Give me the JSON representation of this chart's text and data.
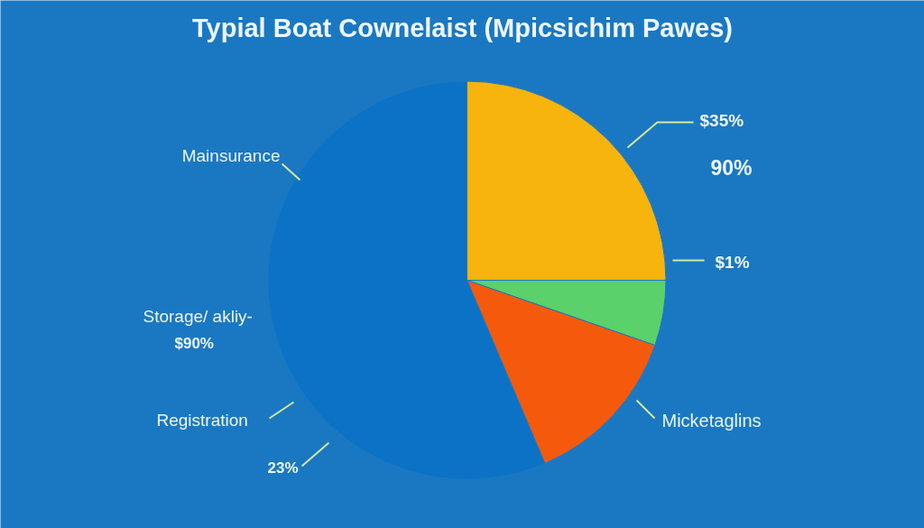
{
  "chart_data": {
    "type": "pie",
    "title": "Typial Boat Cownelaist (Mpicsichim Pawes)",
    "categories": [
      null,
      null,
      "Micketaglins",
      null
    ],
    "values": [
      25,
      5.3,
      13.3,
      56.4
    ],
    "colors": [
      "#f6b40c",
      "#5ad16a",
      "#f55a0c",
      "#0b72c6"
    ],
    "annotations": [
      "Mainsurance",
      "Storage/ akliy-",
      "$90%",
      "Registration",
      "23%",
      "$35%",
      "90%",
      "$1%"
    ]
  }
}
